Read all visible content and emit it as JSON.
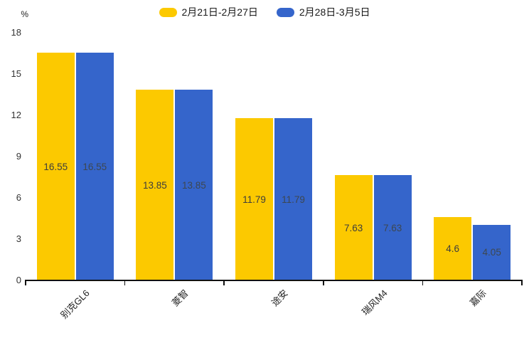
{
  "chart_data": {
    "type": "bar",
    "title": "",
    "categories": [
      "别克GL6",
      "菱智",
      "途安",
      "瑞风M4",
      "嘉际"
    ],
    "series": [
      {
        "name": "2月21日-2月27日",
        "color": "#FCC900",
        "label_color": "#3d3d3d",
        "values": [
          16.55,
          13.85,
          11.79,
          7.63,
          4.6
        ]
      },
      {
        "name": "2月28日-3月5日",
        "color": "#3565CB",
        "label_color": "#3d4750",
        "values": [
          16.55,
          13.85,
          11.79,
          7.63,
          4.05
        ]
      }
    ],
    "ylabel": "%",
    "ylim": [
      0,
      18
    ],
    "yticks": [
      0,
      3,
      6,
      9,
      12,
      15,
      18
    ],
    "grid": false,
    "legend_position": "top",
    "value_labels": true,
    "bar_value_texts": [
      [
        "16.55",
        "13.85",
        "11.79",
        "7.63",
        "4.6"
      ],
      [
        "16.55",
        "13.85",
        "11.79",
        "7.63",
        "4.05"
      ]
    ]
  }
}
